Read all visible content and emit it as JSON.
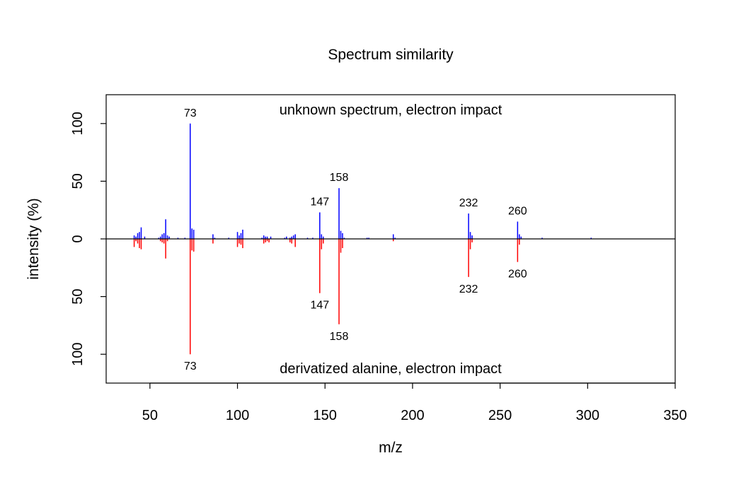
{
  "chart_data": {
    "type": "mirror_spectrum",
    "title": "Spectrum similarity",
    "xlabel": "m/z",
    "ylabel": "intensity (%)",
    "xlim": [
      25,
      350
    ],
    "ylim": [
      -125,
      125
    ],
    "x_ticks": [
      50,
      100,
      150,
      200,
      250,
      300,
      350
    ],
    "y_ticks": [
      {
        "value": 100,
        "label": "100"
      },
      {
        "value": 50,
        "label": "50"
      },
      {
        "value": 0,
        "label": "0"
      },
      {
        "value": -50,
        "label": "50"
      },
      {
        "value": -100,
        "label": "100"
      }
    ],
    "top_label": "unknown spectrum, electron impact",
    "bottom_label": "derivatized alanine, electron impact",
    "colors": {
      "top": "#0000ff",
      "bottom": "#ff0000",
      "baseline": "#000000"
    },
    "top_series": {
      "name": "unknown spectrum, electron impact",
      "peaks": [
        [
          41,
          3
        ],
        [
          42,
          2
        ],
        [
          43,
          5
        ],
        [
          44,
          6
        ],
        [
          45,
          10
        ],
        [
          47,
          2
        ],
        [
          55,
          1
        ],
        [
          56,
          2
        ],
        [
          57,
          4
        ],
        [
          58,
          5
        ],
        [
          59,
          17
        ],
        [
          60,
          3
        ],
        [
          61,
          2
        ],
        [
          66,
          1
        ],
        [
          70,
          1
        ],
        [
          73,
          100
        ],
        [
          74,
          9
        ],
        [
          75,
          8
        ],
        [
          86,
          4
        ],
        [
          87,
          1
        ],
        [
          95,
          1
        ],
        [
          100,
          6
        ],
        [
          101,
          3
        ],
        [
          102,
          5
        ],
        [
          103,
          8
        ],
        [
          114,
          1
        ],
        [
          115,
          3
        ],
        [
          116,
          2
        ],
        [
          117,
          2
        ],
        [
          119,
          2
        ],
        [
          127,
          1
        ],
        [
          128,
          2
        ],
        [
          130,
          1
        ],
        [
          131,
          2
        ],
        [
          132,
          3
        ],
        [
          133,
          4
        ],
        [
          140,
          1
        ],
        [
          143,
          1
        ],
        [
          147,
          23
        ],
        [
          148,
          4
        ],
        [
          149,
          2
        ],
        [
          158,
          44
        ],
        [
          159,
          7
        ],
        [
          160,
          5
        ],
        [
          161,
          1
        ],
        [
          174,
          1
        ],
        [
          175,
          1
        ],
        [
          189,
          4
        ],
        [
          190,
          1
        ],
        [
          232,
          22
        ],
        [
          233,
          6
        ],
        [
          234,
          3
        ],
        [
          260,
          15
        ],
        [
          261,
          4
        ],
        [
          262,
          2
        ],
        [
          274,
          1
        ],
        [
          302,
          1
        ]
      ],
      "labels": [
        {
          "x": 73,
          "text": "73"
        },
        {
          "x": 147,
          "text": "147"
        },
        {
          "x": 158,
          "text": "158"
        },
        {
          "x": 232,
          "text": "232"
        },
        {
          "x": 260,
          "text": "260"
        }
      ]
    },
    "bottom_series": {
      "name": "derivatized alanine, electron impact",
      "peaks": [
        [
          41,
          7
        ],
        [
          42,
          2
        ],
        [
          43,
          4
        ],
        [
          44,
          8
        ],
        [
          45,
          9
        ],
        [
          56,
          2
        ],
        [
          57,
          3
        ],
        [
          58,
          4
        ],
        [
          59,
          17
        ],
        [
          60,
          2
        ],
        [
          73,
          100
        ],
        [
          74,
          10
        ],
        [
          75,
          11
        ],
        [
          86,
          4
        ],
        [
          100,
          7
        ],
        [
          101,
          4
        ],
        [
          102,
          5
        ],
        [
          103,
          8
        ],
        [
          115,
          4
        ],
        [
          116,
          3
        ],
        [
          117,
          2
        ],
        [
          118,
          3
        ],
        [
          130,
          3
        ],
        [
          131,
          4
        ],
        [
          133,
          7
        ],
        [
          147,
          47
        ],
        [
          148,
          9
        ],
        [
          149,
          4
        ],
        [
          158,
          74
        ],
        [
          159,
          12
        ],
        [
          160,
          8
        ],
        [
          189,
          2
        ],
        [
          232,
          33
        ],
        [
          233,
          9
        ],
        [
          234,
          3
        ],
        [
          260,
          20
        ],
        [
          261,
          5
        ]
      ],
      "labels": [
        {
          "x": 73,
          "text": "73"
        },
        {
          "x": 147,
          "text": "147"
        },
        {
          "x": 158,
          "text": "158"
        },
        {
          "x": 232,
          "text": "232"
        },
        {
          "x": 260,
          "text": "260"
        }
      ]
    }
  }
}
